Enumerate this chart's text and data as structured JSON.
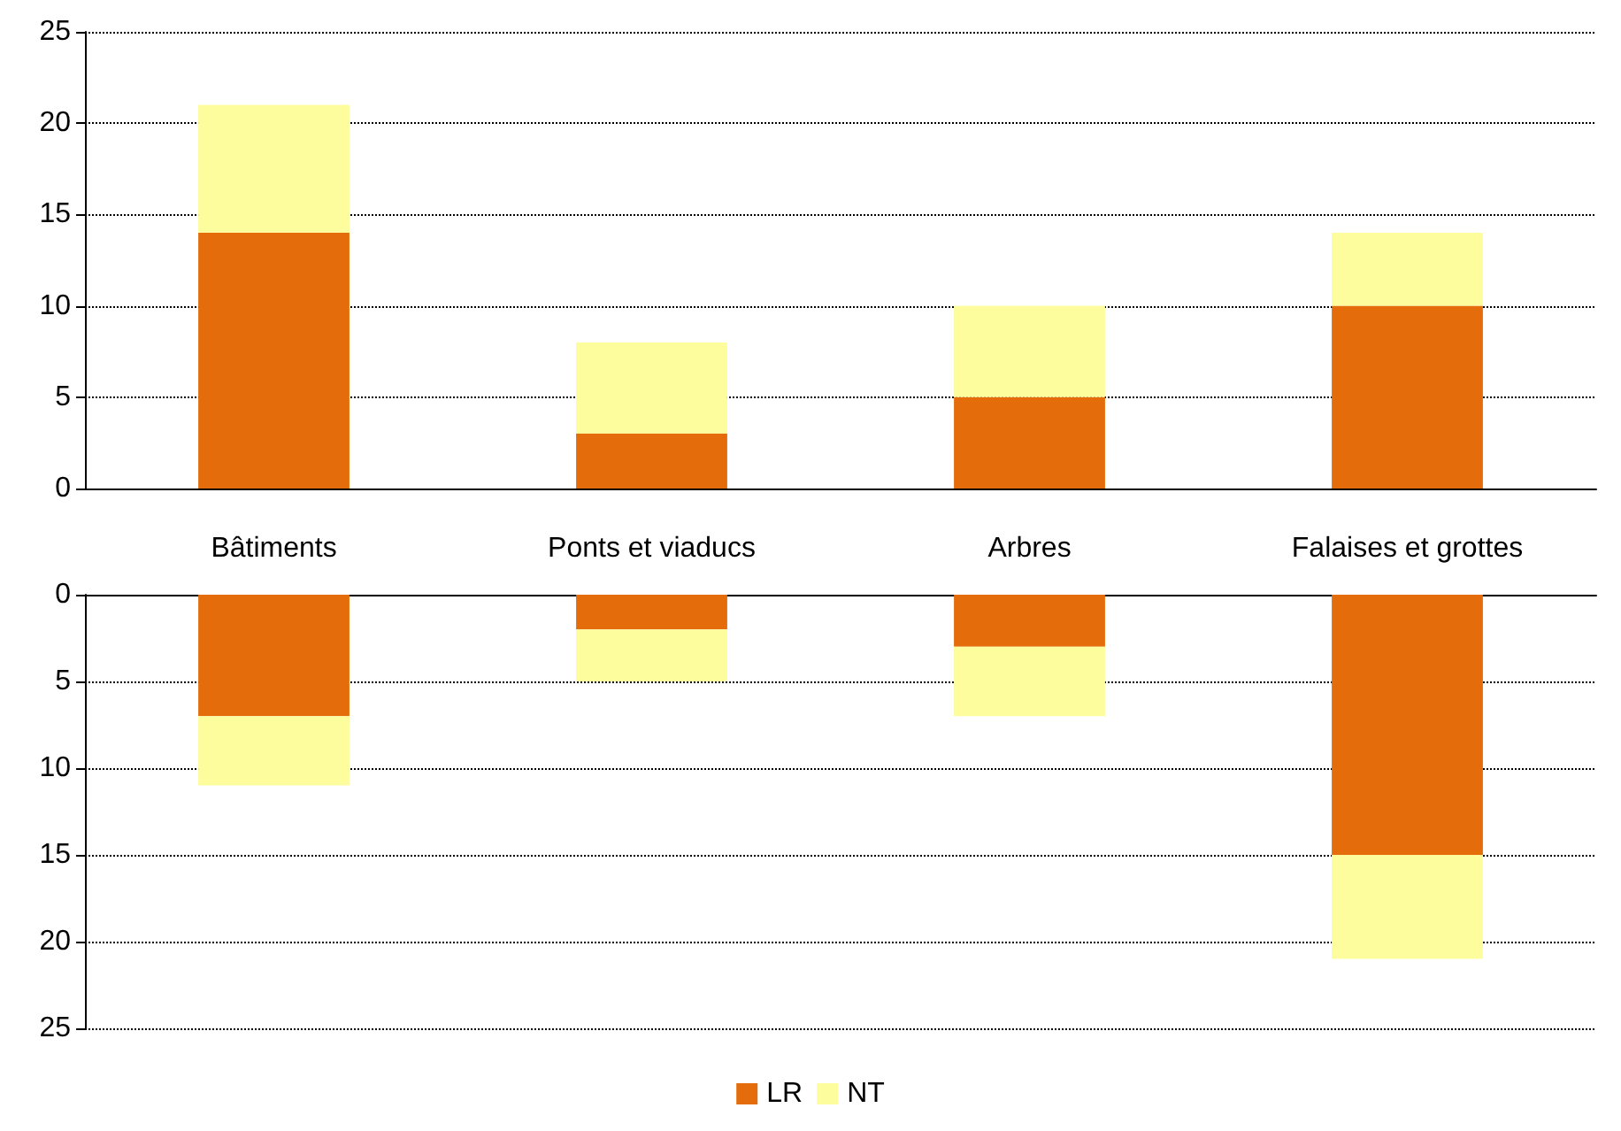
{
  "chart_data": [
    {
      "type": "bar",
      "stacked": true,
      "categories": [
        "Bâtiments",
        "Ponts et viaducs",
        "Arbres",
        "Falaises et grottes"
      ],
      "ylim": [
        0,
        25
      ],
      "yticks": [
        0,
        5,
        10,
        15,
        20,
        25
      ],
      "grid": "y",
      "legend": false,
      "series": [
        {
          "color": "#e46c0a",
          "values": [
            14,
            3,
            5,
            10
          ]
        },
        {
          "color": "#fdfd9e",
          "values": [
            7,
            5,
            5,
            4
          ]
        }
      ]
    },
    {
      "type": "bar",
      "stacked": true,
      "categories": [
        null,
        null,
        null,
        null
      ],
      "ylim": [
        25,
        0
      ],
      "yticks": [
        0,
        5,
        10,
        15,
        20,
        25
      ],
      "grid": "y",
      "legend": "bottom",
      "tick_labels": "y",
      "series": [
        {
          "name": "LR",
          "color": "#e46c0a",
          "values": [
            7,
            2,
            3,
            15
          ]
        },
        {
          "name": "NT",
          "color": "#fdfd9e",
          "values": [
            4,
            3,
            4,
            6
          ]
        }
      ]
    }
  ]
}
